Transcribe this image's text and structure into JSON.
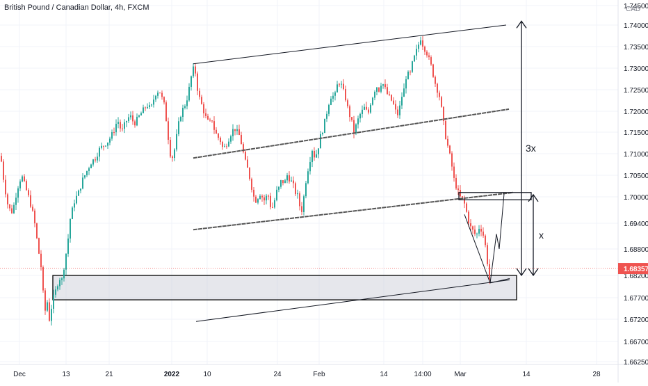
{
  "chart_data": {
    "type": "candlestick",
    "title": "British Pound / Canadian Dollar, 4h, FXCM",
    "currency": "CAD",
    "y_ticks": [
      "1.74500",
      "1.74000",
      "1.73500",
      "1.73000",
      "1.72500",
      "1.72000",
      "1.71500",
      "1.71000",
      "1.70500",
      "1.70000",
      "1.69400",
      "1.68800",
      "1.68200",
      "1.67700",
      "1.67200",
      "1.66700",
      "1.66250"
    ],
    "x_ticks": [
      "Dec",
      "13",
      "21",
      "2022",
      "10",
      "24",
      "Feb",
      "14",
      "14:00",
      "Mar",
      "14",
      "28"
    ],
    "x_ticks_bold": [
      "2022"
    ],
    "current_price": "1.68357",
    "current_price_value": 1.68357,
    "ylim": [
      1.6625,
      1.745
    ],
    "price_path": [
      [
        0,
        1.7095
      ],
      [
        5,
        1.703
      ],
      [
        11,
        1.6975
      ],
      [
        17,
        1.6965
      ],
      [
        24,
        1.702
      ],
      [
        30,
        1.705
      ],
      [
        36,
        1.702
      ],
      [
        42,
        1.699
      ],
      [
        48,
        1.695
      ],
      [
        54,
        1.688
      ],
      [
        58,
        1.684
      ],
      [
        61,
        1.678
      ],
      [
        64,
        1.674
      ],
      [
        67,
        1.676
      ],
      [
        69,
        1.671
      ],
      [
        72,
        1.674
      ],
      [
        76,
        1.677
      ],
      [
        80,
        1.679
      ],
      [
        84,
        1.6815
      ],
      [
        88,
        1.681
      ],
      [
        92,
        1.685
      ],
      [
        96,
        1.689
      ],
      [
        100,
        1.695
      ],
      [
        106,
        1.699
      ],
      [
        112,
        1.701
      ],
      [
        118,
        1.704
      ],
      [
        124,
        1.706
      ],
      [
        130,
        1.708
      ],
      [
        136,
        1.709
      ],
      [
        142,
        1.711
      ],
      [
        148,
        1.712
      ],
      [
        155,
        1.713
      ],
      [
        162,
        1.715
      ],
      [
        168,
        1.718
      ],
      [
        174,
        1.715
      ],
      [
        180,
        1.7175
      ],
      [
        186,
        1.719
      ],
      [
        192,
        1.717
      ],
      [
        198,
        1.7185
      ],
      [
        204,
        1.72
      ],
      [
        210,
        1.7215
      ],
      [
        216,
        1.7205
      ],
      [
        222,
        1.724
      ],
      [
        228,
        1.725
      ],
      [
        232,
        1.723
      ],
      [
        236,
        1.721
      ],
      [
        240,
        1.715
      ],
      [
        244,
        1.71
      ],
      [
        248,
        1.709
      ],
      [
        252,
        1.713
      ],
      [
        256,
        1.717
      ],
      [
        260,
        1.72
      ],
      [
        264,
        1.721
      ],
      [
        268,
        1.723
      ],
      [
        272,
        1.726
      ],
      [
        276,
        1.73
      ],
      [
        280,
        1.729
      ],
      [
        284,
        1.724
      ],
      [
        288,
        1.722
      ],
      [
        292,
        1.72
      ],
      [
        296,
        1.718
      ],
      [
        300,
        1.717
      ],
      [
        304,
        1.718
      ],
      [
        308,
        1.715
      ],
      [
        312,
        1.714
      ],
      [
        316,
        1.713
      ],
      [
        320,
        1.711
      ],
      [
        324,
        1.712
      ],
      [
        328,
        1.7135
      ],
      [
        332,
        1.715
      ],
      [
        336,
        1.716
      ],
      [
        340,
        1.715
      ],
      [
        344,
        1.714
      ],
      [
        348,
        1.711
      ],
      [
        352,
        1.708
      ],
      [
        356,
        1.706
      ],
      [
        360,
        1.703
      ],
      [
        364,
        1.7
      ],
      [
        368,
        1.699
      ],
      [
        372,
        1.701
      ],
      [
        376,
        1.7
      ],
      [
        380,
        1.699
      ],
      [
        384,
        1.701
      ],
      [
        388,
        1.698
      ],
      [
        392,
        1.6975
      ],
      [
        396,
        1.701
      ],
      [
        400,
        1.702
      ],
      [
        404,
        1.704
      ],
      [
        408,
        1.703
      ],
      [
        412,
        1.705
      ],
      [
        416,
        1.704
      ],
      [
        420,
        1.703
      ],
      [
        424,
        1.701
      ],
      [
        428,
        1.7
      ],
      [
        432,
        1.696
      ],
      [
        436,
        1.7
      ],
      [
        440,
        1.705
      ],
      [
        444,
        1.708
      ],
      [
        448,
        1.711
      ],
      [
        452,
        1.709
      ],
      [
        456,
        1.711
      ],
      [
        460,
        1.714
      ],
      [
        464,
        1.716
      ],
      [
        468,
        1.719
      ],
      [
        472,
        1.722
      ],
      [
        476,
        1.724
      ],
      [
        480,
        1.723
      ],
      [
        484,
        1.726
      ],
      [
        488,
        1.727
      ],
      [
        492,
        1.725
      ],
      [
        496,
        1.723
      ],
      [
        500,
        1.72
      ],
      [
        504,
        1.718
      ],
      [
        508,
        1.715
      ],
      [
        512,
        1.717
      ],
      [
        516,
        1.719
      ],
      [
        520,
        1.72
      ],
      [
        524,
        1.721
      ],
      [
        528,
        1.719
      ],
      [
        532,
        1.722
      ],
      [
        536,
        1.724
      ],
      [
        540,
        1.726
      ],
      [
        544,
        1.725
      ],
      [
        548,
        1.727
      ],
      [
        552,
        1.7255
      ],
      [
        556,
        1.724
      ],
      [
        560,
        1.723
      ],
      [
        564,
        1.722
      ],
      [
        568,
        1.72
      ],
      [
        572,
        1.719
      ],
      [
        576,
        1.723
      ],
      [
        580,
        1.725
      ],
      [
        584,
        1.729
      ],
      [
        588,
        1.728
      ],
      [
        592,
        1.731
      ],
      [
        596,
        1.733
      ],
      [
        600,
        1.735
      ],
      [
        604,
        1.737
      ],
      [
        608,
        1.735
      ],
      [
        612,
        1.734
      ],
      [
        616,
        1.732
      ],
      [
        620,
        1.73
      ],
      [
        624,
        1.727
      ],
      [
        628,
        1.725
      ],
      [
        632,
        1.723
      ],
      [
        636,
        1.718
      ],
      [
        640,
        1.714
      ],
      [
        644,
        1.711
      ],
      [
        648,
        1.708
      ],
      [
        652,
        1.704
      ],
      [
        656,
        1.702
      ],
      [
        660,
        1.7
      ],
      [
        664,
        1.6995
      ],
      [
        668,
        1.698
      ],
      [
        672,
        1.695
      ],
      [
        676,
        1.693
      ],
      [
        680,
        1.692
      ],
      [
        684,
        1.691
      ],
      [
        688,
        1.693
      ],
      [
        692,
        1.6925
      ],
      [
        696,
        1.69
      ],
      [
        700,
        1.685
      ],
      [
        703,
        1.681
      ],
      [
        705,
        1.683
      ]
    ],
    "drawings": {
      "channel_upper": [
        [
          278,
          1.731
        ],
        [
          728,
          1.74
        ]
      ],
      "channel_middle": [
        [
          278,
          1.709
        ],
        [
          732,
          1.7205
        ]
      ],
      "channel_lower": [
        [
          278,
          1.6925
        ],
        [
          738,
          1.701
        ]
      ],
      "rising_support": [
        [
          282,
          1.6715
        ],
        [
          733,
          1.681
        ]
      ],
      "demand_zone": {
        "x_from": 76,
        "x_to": 743,
        "price_top": 1.682,
        "price_bottom": 1.6765
      },
      "resistance_box": {
        "x_from": 660,
        "x_to": 764,
        "price_top": 1.701,
        "price_bottom": 1.6998
      },
      "wedge_lines": [
        [
          [
            668,
            1.696
          ],
          [
            705,
            1.6803
          ]
        ],
        [
          [
            705,
            1.6803
          ],
          [
            733,
            1.6813
          ]
        ]
      ],
      "projection_path": [
        [
          705,
          1.6803
        ],
        [
          714,
          1.6915
        ],
        [
          718,
          1.688
        ],
        [
          725,
          1.7007
        ]
      ],
      "measure_3x": {
        "x": 750,
        "price_top": 1.741,
        "price_bottom": 1.682,
        "label": "3x"
      },
      "measure_x": {
        "x": 767,
        "price_top": 1.7005,
        "price_bottom": 1.682,
        "label": "x"
      }
    },
    "colors": {
      "up": "#26a69a",
      "down": "#ef5350",
      "grid": "#f0f3fa",
      "price_tag": "#ef5350",
      "zone_fill": "#d1d4dc",
      "drawing": "#131722"
    }
  }
}
